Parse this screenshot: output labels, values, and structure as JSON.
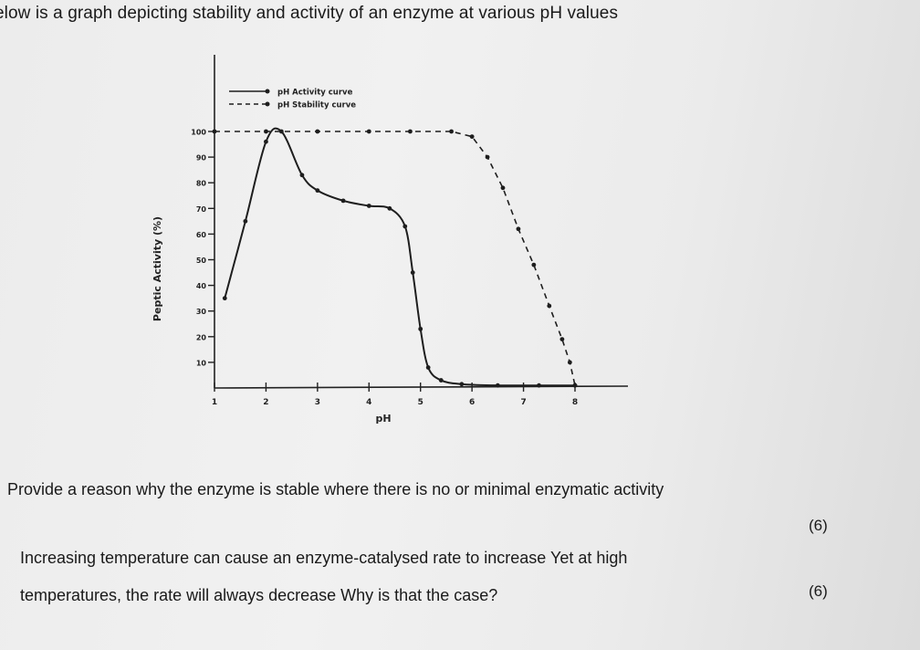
{
  "heading": "elow is a graph depicting stability and activity of an enzyme at various pH values",
  "questions": [
    {
      "text": "Provide a reason why the enzyme is stable where there is no or minimal enzymatic activity",
      "marks": "(6)"
    },
    {
      "line1": "Increasing temperature can cause an enzyme-catalysed rate to increase  Yet at high",
      "line2": "temperatures, the rate will always decrease  Why is that the case?",
      "marks": "(6)"
    }
  ],
  "chart_data": {
    "type": "line",
    "xlabel": "pH",
    "ylabel": "Peptic Activity (%)",
    "x_ticks": [
      "1",
      "2",
      "3",
      "4",
      "5",
      "6",
      "7",
      "8"
    ],
    "y_ticks": [
      "10",
      "20",
      "30",
      "40",
      "50",
      "60",
      "70",
      "80",
      "90",
      "100"
    ],
    "xlim": [
      1,
      8
    ],
    "ylim": [
      0,
      100
    ],
    "legend_position": "top",
    "series": [
      {
        "name": "pH Activity curve",
        "style": "solid",
        "points": [
          [
            1.2,
            35
          ],
          [
            1.6,
            65
          ],
          [
            2.0,
            96
          ],
          [
            2.3,
            100
          ],
          [
            2.7,
            83
          ],
          [
            3.0,
            77
          ],
          [
            3.5,
            73
          ],
          [
            4.0,
            71
          ],
          [
            4.4,
            70
          ],
          [
            4.7,
            63
          ],
          [
            4.85,
            45
          ],
          [
            5.0,
            23
          ],
          [
            5.15,
            8
          ],
          [
            5.4,
            3
          ],
          [
            5.8,
            1.5
          ],
          [
            6.5,
            1
          ],
          [
            7.3,
            1
          ],
          [
            8.0,
            1
          ]
        ]
      },
      {
        "name": "pH Stability curve",
        "style": "dashed",
        "points": [
          [
            1.0,
            100
          ],
          [
            2.0,
            100
          ],
          [
            3.0,
            100
          ],
          [
            4.0,
            100
          ],
          [
            4.8,
            100
          ],
          [
            5.6,
            100
          ],
          [
            6.0,
            98
          ],
          [
            6.3,
            90
          ],
          [
            6.6,
            78
          ],
          [
            6.9,
            62
          ],
          [
            7.2,
            48
          ],
          [
            7.5,
            32
          ],
          [
            7.75,
            19
          ],
          [
            7.9,
            10
          ],
          [
            8.0,
            1
          ]
        ]
      }
    ]
  }
}
